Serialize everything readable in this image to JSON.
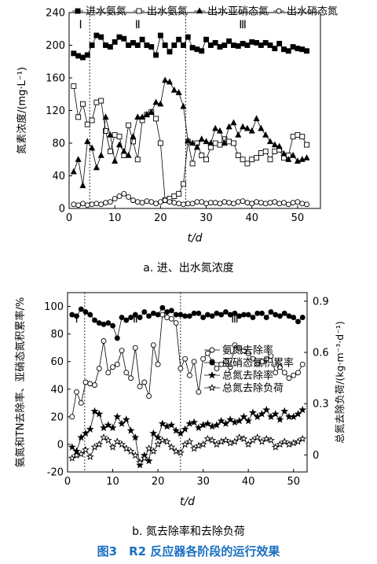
{
  "caption_a": "a. 进、出水氮浓度",
  "caption_b": "b. 氮去除率和去除负荷",
  "figure_title": "图3　R2 反应器各阶段的运行效果",
  "chart_data": [
    {
      "type": "line",
      "xlabel": "t/d",
      "ylabel": "氮素浓度/(mg·L⁻¹)",
      "xlim": [
        0,
        55
      ],
      "ylim": [
        0,
        240
      ],
      "xticks": [
        0,
        10,
        20,
        30,
        40,
        50
      ],
      "yticks": [
        0,
        40,
        80,
        120,
        160,
        200,
        240
      ],
      "grid": false,
      "legend_position": "top",
      "phase_lines": [
        4.5,
        25.5
      ],
      "phases": [
        {
          "label": "Ⅰ",
          "x": 2.5
        },
        {
          "label": "Ⅱ",
          "x": 15
        },
        {
          "label": "Ⅲ",
          "x": 38
        }
      ],
      "series": [
        {
          "name": "进水氨氮",
          "marker": "filled-square",
          "x": [
            1,
            2,
            3,
            4,
            5,
            6,
            7,
            8,
            9,
            10,
            11,
            12,
            13,
            14,
            15,
            16,
            17,
            18,
            19,
            20,
            21,
            22,
            23,
            24,
            25,
            26,
            27,
            28,
            29,
            30,
            31,
            32,
            33,
            34,
            35,
            36,
            37,
            38,
            39,
            40,
            41,
            42,
            43,
            44,
            45,
            46,
            47,
            48,
            49,
            50,
            51,
            52
          ],
          "values": [
            190,
            187,
            185,
            188,
            200,
            212,
            210,
            200,
            198,
            204,
            210,
            208,
            200,
            203,
            200,
            207,
            200,
            198,
            188,
            212,
            200,
            192,
            200,
            207,
            200,
            210,
            197,
            195,
            193,
            207,
            200,
            203,
            198,
            200,
            205,
            200,
            199,
            202,
            200,
            204,
            203,
            200,
            203,
            200,
            196,
            202,
            195,
            193,
            198,
            196,
            195,
            193
          ]
        },
        {
          "name": "出水氨氮",
          "marker": "open-square",
          "x": [
            1,
            2,
            3,
            4,
            5,
            6,
            7,
            8,
            9,
            10,
            11,
            12,
            13,
            14,
            15,
            16,
            17,
            18,
            19,
            20,
            21,
            22,
            23,
            24,
            25,
            26,
            27,
            28,
            29,
            30,
            31,
            32,
            33,
            34,
            35,
            36,
            37,
            38,
            39,
            40,
            41,
            42,
            43,
            44,
            45,
            46,
            47,
            48,
            49,
            50,
            51,
            52
          ],
          "values": [
            150,
            112,
            128,
            103,
            108,
            130,
            132,
            95,
            70,
            90,
            88,
            65,
            102,
            82,
            60,
            108,
            115,
            118,
            110,
            80,
            10,
            12,
            15,
            18,
            30,
            82,
            55,
            80,
            65,
            60,
            75,
            80,
            78,
            85,
            82,
            80,
            65,
            60,
            55,
            60,
            62,
            68,
            70,
            60,
            70,
            72,
            62,
            65,
            88,
            90,
            88,
            78
          ]
        },
        {
          "name": "出水亚硝态氮",
          "marker": "filled-triangle",
          "x": [
            1,
            2,
            3,
            4,
            5,
            6,
            7,
            8,
            9,
            10,
            11,
            12,
            13,
            14,
            15,
            16,
            17,
            18,
            19,
            20,
            21,
            22,
            23,
            24,
            25,
            26,
            27,
            28,
            29,
            30,
            31,
            32,
            33,
            34,
            35,
            36,
            37,
            38,
            39,
            40,
            41,
            42,
            43,
            44,
            45,
            46,
            47,
            48,
            49,
            50,
            51,
            52
          ],
          "values": [
            45,
            60,
            28,
            82,
            74,
            50,
            65,
            112,
            90,
            58,
            78,
            70,
            65,
            88,
            112,
            112,
            115,
            118,
            130,
            128,
            157,
            155,
            145,
            142,
            125,
            83,
            80,
            75,
            85,
            82,
            80,
            98,
            95,
            80,
            100,
            105,
            90,
            100,
            98,
            95,
            110,
            98,
            90,
            82,
            78,
            76,
            67,
            60,
            65,
            58,
            60,
            62
          ]
        },
        {
          "name": "出水硝态氮",
          "marker": "open-circle",
          "x": [
            1,
            2,
            3,
            4,
            5,
            6,
            7,
            8,
            9,
            10,
            11,
            12,
            13,
            14,
            15,
            16,
            17,
            18,
            19,
            20,
            21,
            22,
            23,
            24,
            25,
            26,
            27,
            28,
            29,
            30,
            31,
            32,
            33,
            34,
            35,
            36,
            37,
            38,
            39,
            40,
            41,
            42,
            43,
            44,
            45,
            46,
            47,
            48,
            49,
            50,
            51,
            52
          ],
          "values": [
            5,
            4,
            6,
            4,
            5,
            6,
            5,
            7,
            8,
            12,
            15,
            18,
            14,
            10,
            8,
            7,
            9,
            8,
            6,
            8,
            10,
            8,
            7,
            6,
            5,
            6,
            6,
            8,
            8,
            6,
            7,
            7,
            6,
            8,
            7,
            6,
            8,
            9,
            7,
            6,
            8,
            7,
            6,
            7,
            8,
            6,
            7,
            5,
            7,
            8,
            6,
            5
          ]
        }
      ]
    },
    {
      "type": "line",
      "xlabel": "t/d",
      "ylabel": "氨氮和TN去除率、亚硝态氮积累率/%",
      "y2label": "总氮去除负荷/(kg·m⁻³·d⁻¹)",
      "xlim": [
        0,
        53
      ],
      "ylim": [
        -20,
        110
      ],
      "y2lim": [
        -0.1,
        0.95
      ],
      "xticks": [
        0,
        10,
        20,
        30,
        40,
        50
      ],
      "yticks": [
        -20,
        0,
        20,
        40,
        60,
        80,
        100
      ],
      "y2ticks": [
        0,
        0.3,
        0.6,
        0.9
      ],
      "y2ticklabels": [
        "0",
        "0.3",
        "0.6",
        "0.9"
      ],
      "grid": false,
      "legend_position": "center-right",
      "phase_lines": [
        3.8,
        25
      ],
      "phases": [
        {
          "label": "Ⅰ",
          "x": 2
        },
        {
          "label": "Ⅱ",
          "x": 15
        },
        {
          "label": "Ⅲ",
          "x": 37
        }
      ],
      "series": [
        {
          "name": "氨氮去除率",
          "marker": "open-circle",
          "axis": "left",
          "x": [
            1,
            2,
            3,
            4,
            5,
            6,
            7,
            8,
            9,
            10,
            11,
            12,
            13,
            14,
            15,
            16,
            17,
            18,
            19,
            20,
            21,
            22,
            23,
            24,
            25,
            26,
            27,
            28,
            29,
            30,
            31,
            32,
            33,
            34,
            35,
            36,
            37,
            38,
            39,
            40,
            41,
            42,
            43,
            44,
            45,
            46,
            47,
            48,
            49,
            50,
            51,
            52
          ],
          "values": [
            20,
            38,
            30,
            45,
            44,
            43,
            55,
            75,
            52,
            56,
            58,
            68,
            52,
            48,
            70,
            42,
            45,
            35,
            72,
            58,
            94,
            92,
            91,
            88,
            55,
            62,
            50,
            60,
            38,
            62,
            66,
            60,
            55,
            58,
            60,
            56,
            72,
            70,
            68,
            66,
            62,
            58,
            60,
            62,
            64,
            52,
            56,
            52,
            48,
            50,
            52,
            58
          ]
        },
        {
          "name": "亚硝态氮积累率",
          "marker": "filled-circle",
          "axis": "left",
          "x": [
            1,
            2,
            3,
            4,
            5,
            6,
            7,
            8,
            9,
            10,
            11,
            12,
            13,
            14,
            15,
            16,
            17,
            18,
            19,
            20,
            21,
            22,
            23,
            24,
            25,
            26,
            27,
            28,
            29,
            30,
            31,
            32,
            33,
            34,
            35,
            36,
            37,
            38,
            39,
            40,
            41,
            42,
            43,
            44,
            45,
            46,
            47,
            48,
            49,
            50,
            51,
            52
          ],
          "values": [
            94,
            93,
            98,
            96,
            94,
            90,
            88,
            87,
            88,
            86,
            77,
            92,
            90,
            92,
            94,
            92,
            96,
            93,
            95,
            94,
            99,
            96,
            97,
            94,
            94,
            93,
            93,
            95,
            95,
            92,
            94,
            93,
            95,
            94,
            96,
            94,
            95,
            93,
            94,
            94,
            92,
            95,
            95,
            92,
            96,
            94,
            93,
            95,
            93,
            92,
            89,
            92
          ]
        },
        {
          "name": "总氮去除率",
          "marker": "filled-star",
          "axis": "left",
          "x": [
            1,
            2,
            3,
            4,
            5,
            6,
            7,
            8,
            9,
            10,
            11,
            12,
            13,
            14,
            15,
            16,
            17,
            18,
            19,
            20,
            21,
            22,
            23,
            24,
            25,
            26,
            27,
            28,
            29,
            30,
            31,
            32,
            33,
            34,
            35,
            36,
            37,
            38,
            39,
            40,
            41,
            42,
            43,
            44,
            45,
            46,
            47,
            48,
            49,
            50,
            51,
            52
          ],
          "values": [
            -2,
            -5,
            5,
            8,
            11,
            24,
            22,
            12,
            14,
            12,
            20,
            15,
            18,
            10,
            5,
            -15,
            -8,
            -12,
            8,
            5,
            15,
            13,
            14,
            10,
            8,
            11,
            15,
            16,
            12,
            14,
            15,
            13,
            14,
            17,
            15,
            18,
            16,
            17,
            20,
            17,
            23,
            20,
            22,
            25,
            20,
            22,
            18,
            24,
            20,
            20,
            22,
            25
          ]
        },
        {
          "name": "总氮去除负荷",
          "marker": "open-star",
          "axis": "left",
          "x": [
            1,
            2,
            3,
            4,
            5,
            6,
            7,
            8,
            9,
            10,
            11,
            12,
            13,
            14,
            15,
            16,
            17,
            18,
            19,
            20,
            21,
            22,
            23,
            24,
            25,
            26,
            27,
            28,
            29,
            30,
            31,
            32,
            33,
            34,
            35,
            36,
            37,
            38,
            39,
            40,
            41,
            42,
            43,
            44,
            45,
            46,
            47,
            48,
            49,
            50,
            51,
            52
          ],
          "values": [
            -10,
            -8,
            -7,
            -4,
            -9,
            -2,
            0,
            5,
            3,
            -2,
            2,
            0,
            -3,
            -5,
            -8,
            -13,
            -10,
            -3,
            -5,
            0,
            3,
            2,
            -2,
            -5,
            -6,
            0,
            2,
            -3,
            -1,
            0,
            4,
            3,
            0,
            2,
            3,
            1,
            2,
            5,
            4,
            0,
            3,
            5,
            2,
            4,
            3,
            -2,
            0,
            2,
            0,
            1,
            2,
            4
          ]
        }
      ]
    }
  ]
}
